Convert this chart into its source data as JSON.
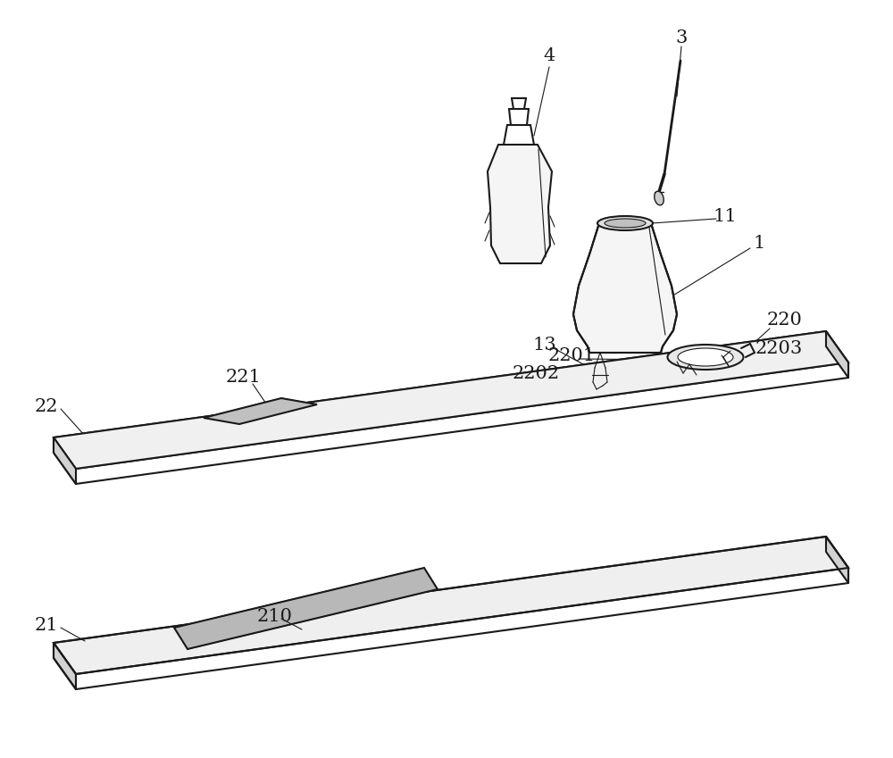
{
  "background_color": "#ffffff",
  "line_color": "#1a1a1a",
  "line_width": 1.5,
  "thin_line": 0.8,
  "figsize": [
    10.0,
    8.49
  ],
  "dpi": 100
}
